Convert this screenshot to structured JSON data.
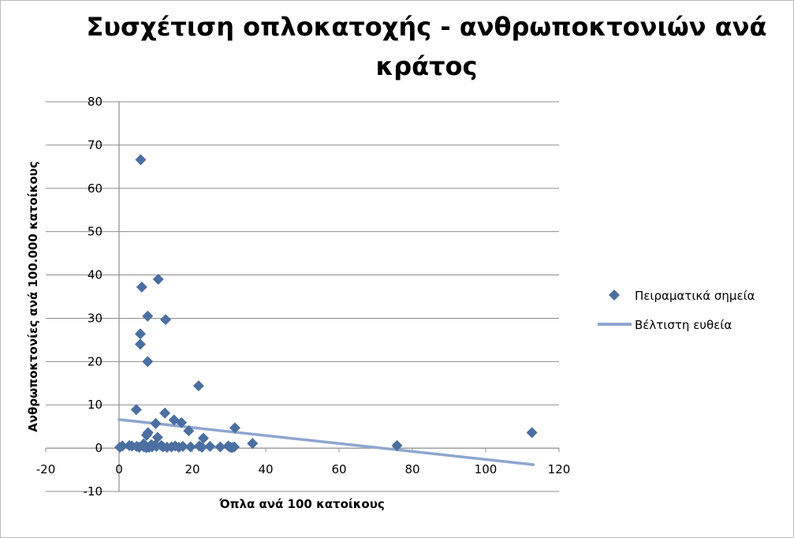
{
  "chart_data": {
    "type": "scatter",
    "title_lines": [
      "Συσχέτιση οπλοκατοχής - ανθρωποκτονιών ανά",
      "κράτος"
    ],
    "xlabel": "Όπλα ανά 100 κατοίκους",
    "ylabel": "Ανθρωποκτονίες ανά 100.000 κατοίκους",
    "xlim": [
      -20,
      120
    ],
    "ylim": [
      -10,
      80
    ],
    "x_ticks": [
      -20,
      0,
      20,
      40,
      60,
      80,
      100,
      120
    ],
    "y_ticks": [
      -10,
      0,
      10,
      20,
      30,
      40,
      50,
      60,
      70,
      80
    ],
    "grid": true,
    "legend_position": "right",
    "series": [
      {
        "name": "Πειραματικά σημεία",
        "kind": "scatter",
        "marker": "diamond",
        "color": "#4a6fa0",
        "points": [
          [
            5.9,
            66.6
          ],
          [
            10.7,
            39.0
          ],
          [
            6.2,
            37.2
          ],
          [
            7.8,
            30.5
          ],
          [
            12.7,
            29.7
          ],
          [
            5.8,
            26.4
          ],
          [
            5.8,
            24.0
          ],
          [
            7.8,
            20.0
          ],
          [
            21.7,
            14.4
          ],
          [
            4.7,
            8.9
          ],
          [
            12.5,
            8.1
          ],
          [
            15.0,
            6.5
          ],
          [
            17.0,
            5.9
          ],
          [
            10.0,
            5.7
          ],
          [
            19.0,
            4.0
          ],
          [
            31.6,
            4.7
          ],
          [
            7.9,
            3.6
          ],
          [
            7.5,
            3.0
          ],
          [
            10.5,
            2.5
          ],
          [
            23.0,
            2.3
          ],
          [
            36.4,
            1.1
          ],
          [
            112.6,
            3.6
          ],
          [
            75.8,
            0.6
          ],
          [
            6.7,
            1.0
          ],
          [
            8.8,
            0.8
          ],
          [
            9.9,
            0.7
          ],
          [
            11.5,
            0.6
          ],
          [
            15.3,
            0.5
          ],
          [
            0.2,
            0.2
          ],
          [
            0.9,
            0.5
          ],
          [
            2.8,
            0.6
          ],
          [
            3.5,
            0.5
          ],
          [
            4.8,
            0.4
          ],
          [
            5.5,
            0.2
          ],
          [
            6.8,
            0.3
          ],
          [
            7.5,
            0.1
          ],
          [
            8.2,
            0.2
          ],
          [
            9.0,
            0.3
          ],
          [
            10.2,
            0.4
          ],
          [
            12.0,
            0.3
          ],
          [
            13.1,
            0.2
          ],
          [
            14.3,
            0.3
          ],
          [
            16.3,
            0.2
          ],
          [
            17.4,
            0.4
          ],
          [
            19.5,
            0.3
          ],
          [
            21.9,
            0.5
          ],
          [
            22.6,
            0.2
          ],
          [
            24.8,
            0.4
          ],
          [
            27.6,
            0.3
          ],
          [
            29.8,
            0.5
          ],
          [
            30.3,
            0.2
          ],
          [
            30.8,
            0.1
          ],
          [
            31.4,
            0.3
          ]
        ]
      },
      {
        "name": "Βέλτιστη ευθεία",
        "kind": "line",
        "color": "#8ea6cf",
        "points": [
          [
            0,
            6.6
          ],
          [
            113,
            -3.8
          ]
        ]
      }
    ]
  }
}
